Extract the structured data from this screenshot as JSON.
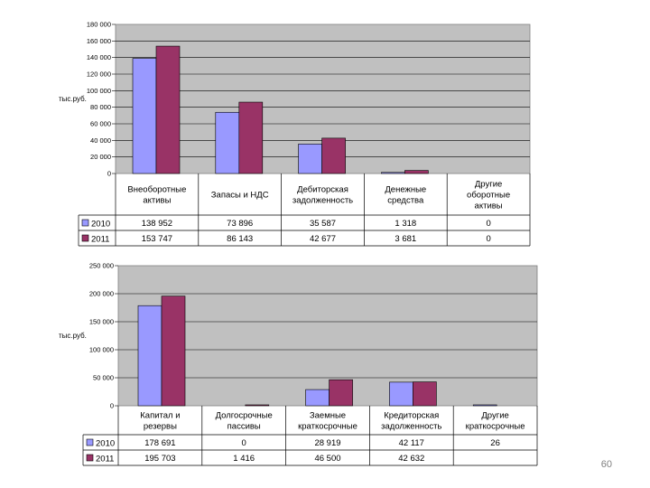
{
  "chart_data": [
    {
      "type": "bar",
      "title": "",
      "xlabel": "",
      "ylabel": "тыс.руб.",
      "ylim": [
        0,
        180000
      ],
      "y_ticks": [
        "0",
        "20 000",
        "40 000",
        "60 000",
        "80 000",
        "100 000",
        "120 000",
        "140 000",
        "160 000",
        "180 000"
      ],
      "y_tick_values": [
        0,
        20000,
        40000,
        60000,
        80000,
        100000,
        120000,
        140000,
        160000,
        180000
      ],
      "categories": [
        [
          "Внеоборотные",
          "активы"
        ],
        [
          "Запасы и НДС"
        ],
        [
          "Дебиторская",
          "задолженность"
        ],
        [
          "Денежные",
          "средства"
        ],
        [
          "Другие",
          "оборотные",
          "активы"
        ]
      ],
      "series": [
        {
          "name": "2010",
          "color": "#9999ff",
          "values": [
            138952,
            73896,
            35587,
            1318,
            0
          ],
          "labels": [
            "138 952",
            "73 896",
            "35 587",
            "1 318",
            "0"
          ]
        },
        {
          "name": "2011",
          "color": "#993366",
          "values": [
            153747,
            86143,
            42677,
            3681,
            0
          ],
          "labels": [
            "153 747",
            "86 143",
            "42 677",
            "3 681",
            "0"
          ]
        }
      ],
      "grid": true,
      "plot_background": "#c0c0c0",
      "legend": "data-table"
    },
    {
      "type": "bar",
      "title": "",
      "xlabel": "",
      "ylabel": "тыс.руб.",
      "ylim": [
        0,
        250000
      ],
      "y_ticks": [
        "0",
        "50 000",
        "100 000",
        "150 000",
        "200 000",
        "250 000"
      ],
      "y_tick_values": [
        0,
        50000,
        100000,
        150000,
        200000,
        250000
      ],
      "categories": [
        [
          "Капитал и",
          "резервы"
        ],
        [
          "Долгосрочные",
          "пассивы"
        ],
        [
          "Заемные",
          "краткосрочные"
        ],
        [
          "Кредиторская",
          "задолженность"
        ],
        [
          "Другие",
          "краткосрочные"
        ]
      ],
      "series": [
        {
          "name": "2010",
          "color": "#9999ff",
          "values": [
            178691,
            0,
            28919,
            42117,
            26
          ],
          "labels": [
            "178 691",
            "0",
            "28 919",
            "42 117",
            "26"
          ]
        },
        {
          "name": "2011",
          "color": "#993366",
          "values": [
            195703,
            1416,
            46500,
            42632,
            null
          ],
          "labels": [
            "195 703",
            "1 416",
            "46 500",
            "42 632",
            ""
          ]
        }
      ],
      "grid": true,
      "plot_background": "#c0c0c0",
      "legend": "data-table"
    }
  ],
  "page_number": "60"
}
